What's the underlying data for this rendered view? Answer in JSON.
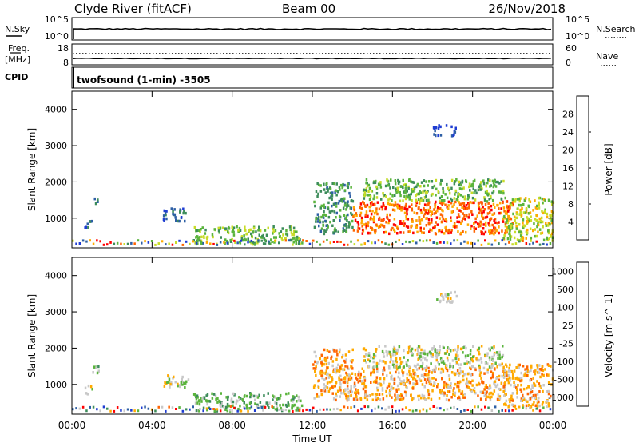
{
  "header": {
    "site": "Clyde River (fitACF)",
    "beam": "Beam 00",
    "date": "26/Nov/2018"
  },
  "nsky_panel": {
    "left_label": "N.Sky",
    "left_ticks": [
      "10^5",
      "10^0"
    ],
    "right_label": "N.Search",
    "right_ticks": [
      "10^5",
      "10^0"
    ],
    "legend_style": "dotted"
  },
  "freq_panel": {
    "left_label_1": "Freq.",
    "left_label_2": "[MHz]",
    "left_ticks": [
      "18",
      "8"
    ],
    "right_label": "Nave",
    "right_ticks": [
      "60",
      "0"
    ],
    "legend_style": "dotted"
  },
  "cpid": {
    "label": "CPID",
    "program": "twofsound (1-min) -3505"
  },
  "chart_data": [
    {
      "type": "heatmap",
      "quantity": "Power",
      "ylabel": "Slant Range [km]",
      "xlabel": "",
      "ylim": [
        180,
        4500
      ],
      "yticks": [
        "1000",
        "2000",
        "3000",
        "4000"
      ],
      "ytick_values": [
        1000,
        2000,
        3000,
        4000
      ],
      "colorbar_label": "Power [dB]",
      "colorbar_ticks": [
        "4",
        "8",
        "12",
        "16",
        "20",
        "24",
        "28"
      ],
      "colorbar_colors": [
        "#1e3cd2",
        "#2d5fa5",
        "#3c8c5a",
        "#5ab43c",
        "#c8dc28",
        "#ffaa00",
        "#ff6400",
        "#ff0000"
      ],
      "xlim_hours": [
        0,
        24
      ],
      "echo_regions": [
        {
          "t_start": 0.5,
          "t_end": 1.0,
          "r_low": 750,
          "r_high": 1000,
          "value_class": 1
        },
        {
          "t_start": 1.0,
          "t_end": 1.3,
          "r_low": 1350,
          "r_high": 1600,
          "value_class": 1
        },
        {
          "t_start": 4.5,
          "t_end": 5.8,
          "r_low": 950,
          "r_high": 1300,
          "value_class": 1
        },
        {
          "t_start": 6.0,
          "t_end": 11.5,
          "r_low": 300,
          "r_high": 800,
          "value_class": 3
        },
        {
          "t_start": 12.0,
          "t_end": 14.0,
          "r_low": 600,
          "r_high": 2000,
          "value_class": 2
        },
        {
          "t_start": 14.0,
          "t_end": 22.0,
          "r_low": 600,
          "r_high": 1500,
          "value_class": 6
        },
        {
          "t_start": 14.5,
          "t_end": 21.5,
          "r_low": 1500,
          "r_high": 2100,
          "value_class": 3
        },
        {
          "t_start": 21.5,
          "t_end": 24.0,
          "r_low": 400,
          "r_high": 1600,
          "value_class": 4
        },
        {
          "t_start": 18.0,
          "t_end": 19.2,
          "r_low": 3300,
          "r_high": 3600,
          "value_class": 0
        }
      ]
    },
    {
      "type": "heatmap",
      "quantity": "Velocity",
      "ylabel": "Slant Range [km]",
      "xlabel": "Time UT",
      "ylim": [
        180,
        4500
      ],
      "yticks": [
        "1000",
        "2000",
        "3000",
        "4000"
      ],
      "ytick_values": [
        1000,
        2000,
        3000,
        4000
      ],
      "xticks": [
        "00:00",
        "04:00",
        "08:00",
        "12:00",
        "16:00",
        "20:00",
        "00:00"
      ],
      "xtick_hours": [
        0,
        4,
        8,
        12,
        16,
        20,
        24
      ],
      "colorbar_label": "Velocity [m s^-1]",
      "colorbar_ticks": [
        "1000",
        "500",
        "100",
        "25",
        "-25",
        "-100",
        "-500",
        "-1000"
      ],
      "colorbar_colors": [
        "#1e3cd2",
        "#2d5fa5",
        "#3c8c5a",
        "#5ab43c",
        "#c8c8c8",
        "#ffaa00",
        "#ff6400",
        "#ff0000"
      ],
      "xlim_hours": [
        0,
        24
      ],
      "echo_regions": [
        {
          "t_start": 0.5,
          "t_end": 1.0,
          "r_low": 750,
          "r_high": 1000,
          "value_class": 4
        },
        {
          "t_start": 1.0,
          "t_end": 1.3,
          "r_low": 1350,
          "r_high": 1600,
          "value_class": 3
        },
        {
          "t_start": 4.5,
          "t_end": 5.8,
          "r_low": 950,
          "r_high": 1300,
          "value_class": 4
        },
        {
          "t_start": 6.0,
          "t_end": 11.5,
          "r_low": 300,
          "r_high": 800,
          "value_class": 3
        },
        {
          "t_start": 12.0,
          "t_end": 14.0,
          "r_low": 600,
          "r_high": 2000,
          "value_class": 5
        },
        {
          "t_start": 14.0,
          "t_end": 22.0,
          "r_low": 600,
          "r_high": 1500,
          "value_class": 5
        },
        {
          "t_start": 14.5,
          "t_end": 21.5,
          "r_low": 1500,
          "r_high": 2100,
          "value_class": 4
        },
        {
          "t_start": 21.5,
          "t_end": 24.0,
          "r_low": 400,
          "r_high": 1600,
          "value_class": 5
        },
        {
          "t_start": 18.0,
          "t_end": 19.2,
          "r_low": 3300,
          "r_high": 3600,
          "value_class": 4
        }
      ]
    }
  ]
}
